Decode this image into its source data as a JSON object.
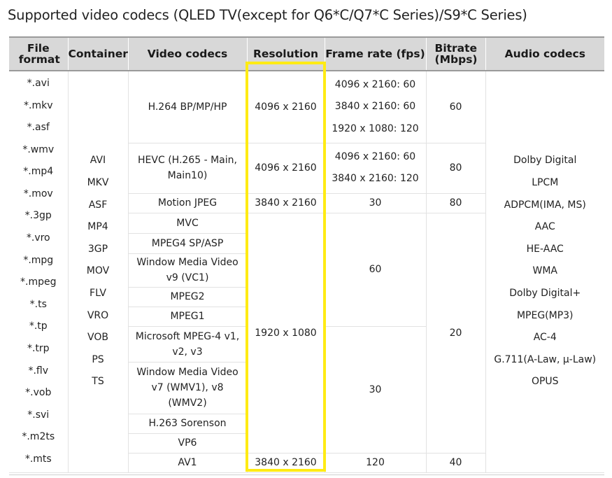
{
  "title": "Supported video codecs (QLED TV(except for Q6*C/Q7*C Series)/S9*C Series)",
  "columns": {
    "file_format": "File format",
    "container": "Container",
    "video_codecs": "Video codecs",
    "resolution": "Resolution",
    "frame_rate": "Frame rate (fps)",
    "bitrate": "Bitrate (Mbps)",
    "audio_codecs": "Audio codecs"
  },
  "file_formats": [
    "*.avi",
    "*.mkv",
    "*.asf",
    "*.wmv",
    "*.mp4",
    "*.mov",
    "*.3gp",
    "*.vro",
    "*.mpg",
    "*.mpeg",
    "*.ts",
    "*.tp",
    "*.trp",
    "*.flv",
    "*.vob",
    "*.svi",
    "*.m2ts",
    "*.mts"
  ],
  "containers": [
    "AVI",
    "MKV",
    "ASF",
    "MP4",
    "3GP",
    "MOV",
    "FLV",
    "VRO",
    "VOB",
    "PS",
    "TS"
  ],
  "audio_codecs": [
    "Dolby Digital",
    "LPCM",
    "ADPCM(IMA, MS)",
    "AAC",
    "HE-AAC",
    "WMA",
    "Dolby Digital+",
    "MPEG(MP3)",
    "AC-4",
    "G.711(A-Law, μ-Law)",
    "OPUS"
  ],
  "video_rows": {
    "h264": {
      "codec": "H.264 BP/MP/HP",
      "resolution": "4096 x 2160",
      "frame_rates": [
        "4096 x 2160: 60",
        "3840 x 2160: 60",
        "1920 x 1080: 120"
      ],
      "bitrate": "60"
    },
    "hevc": {
      "codec": "HEVC (H.265 - Main, Main10)",
      "resolution": "4096 x 2160",
      "frame_rates": [
        "4096 x 2160: 60",
        "3840 x 2160: 120"
      ],
      "bitrate": "80"
    },
    "mjpeg": {
      "codec": "Motion JPEG",
      "resolution": "3840 x 2160",
      "frame_rate": "30",
      "bitrate": "80"
    },
    "mvc": {
      "codec": "MVC"
    },
    "mpeg4": {
      "codec": "MPEG4 SP/ASP"
    },
    "wmv9": {
      "codec": "Window Media Video v9 (VC1)"
    },
    "mpeg2": {
      "codec": "MPEG2"
    },
    "mpeg1": {
      "codec": "MPEG1"
    },
    "msmpeg4": {
      "codec": "Microsoft MPEG-4 v1, v2, v3"
    },
    "wmv7": {
      "codec": "Window Media Video v7 (WMV1), v8 (WMV2)"
    },
    "h263": {
      "codec": "H.263 Sorenson"
    },
    "vp6": {
      "codec": "VP6"
    },
    "av1": {
      "codec": "AV1",
      "resolution": "3840 x 2160",
      "frame_rate": "120",
      "bitrate": "40"
    }
  },
  "shared": {
    "resolution_1080": "1920 x 1080",
    "fps_60": "60",
    "fps_30": "30",
    "bitrate_20": "20"
  },
  "highlight_color": "#ffeb14"
}
